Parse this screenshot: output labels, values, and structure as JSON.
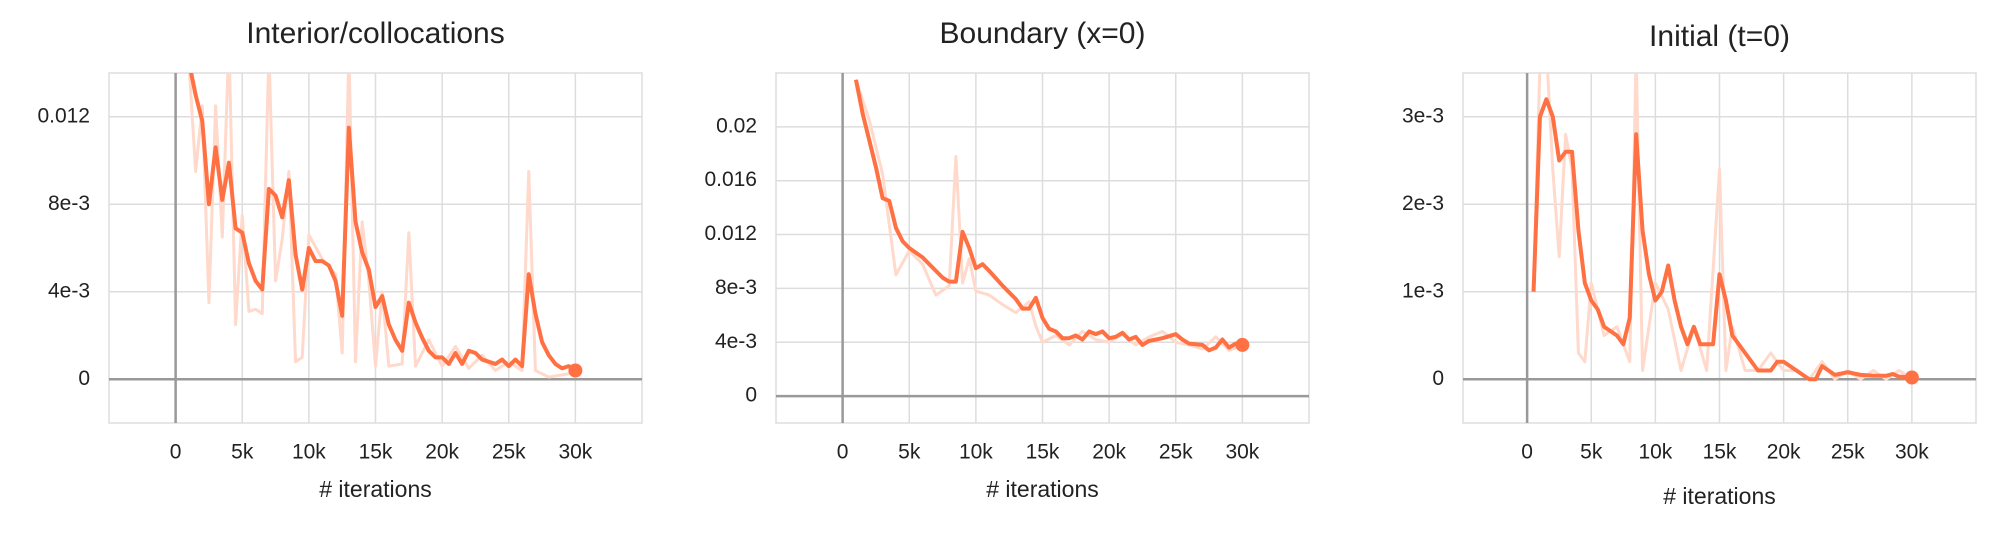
{
  "chart_data": [
    {
      "type": "line",
      "title": "Interior/collocations",
      "x_label": "# iterations",
      "x": [
        1000,
        1500,
        2000,
        2500,
        3000,
        3500,
        4000,
        4500,
        5000,
        5500,
        6000,
        6500,
        7000,
        7500,
        8000,
        8500,
        9000,
        9500,
        10000,
        10500,
        11000,
        11500,
        12000,
        12500,
        13000,
        13500,
        14000,
        14500,
        15000,
        15500,
        16000,
        16500,
        17000,
        17500,
        18000,
        18500,
        19000,
        19500,
        20000,
        20500,
        21000,
        21500,
        22000,
        22500,
        23000,
        24000,
        24500,
        25000,
        25500,
        26000,
        26500,
        27000,
        27500,
        28000,
        28500,
        29000,
        29500,
        30000
      ],
      "series": [
        {
          "color": "#ff7043",
          "values": [
            0.0145,
            0.013,
            0.0118,
            0.008,
            0.0106,
            0.0082,
            0.0099,
            0.0069,
            0.0067,
            0.0053,
            0.0045,
            0.0041,
            0.0087,
            0.0084,
            0.0074,
            0.0091,
            0.0057,
            0.0041,
            0.006,
            0.0054,
            0.0054,
            0.0052,
            0.0045,
            0.0029,
            0.0115,
            0.0072,
            0.0058,
            0.005,
            0.0033,
            0.0038,
            0.0025,
            0.0018,
            0.0013,
            0.0035,
            0.0026,
            0.0019,
            0.0013,
            0.001,
            0.001,
            0.0007,
            0.0012,
            0.0007,
            0.0013,
            0.0012,
            0.0009,
            0.0007,
            0.0009,
            0.0006,
            0.0009,
            0.0006,
            0.0048,
            0.003,
            0.0017,
            0.0011,
            0.0007,
            0.0005,
            0.0006,
            0.0004
          ]
        },
        {
          "color": "#ffd9cb",
          "x": [
            1000,
            1500,
            2000,
            2500,
            3000,
            3500,
            4000,
            4500,
            5000,
            5500,
            6000,
            6500,
            7000,
            7500,
            8000,
            8500,
            9000,
            9500,
            10000,
            11000,
            12000,
            12500,
            13000,
            13500,
            14000,
            14500,
            15000,
            15500,
            16000,
            17000,
            17500,
            18000,
            19000,
            20000,
            21000,
            22000,
            23000,
            24000,
            25000,
            26000,
            26500,
            27000,
            28000,
            29000,
            30000
          ],
          "values": [
            0.0145,
            0.0095,
            0.0125,
            0.0035,
            0.0125,
            0.0065,
            0.0155,
            0.0025,
            0.0075,
            0.0031,
            0.0032,
            0.003,
            0.015,
            0.0045,
            0.0064,
            0.0095,
            0.0008,
            0.001,
            0.0066,
            0.0055,
            0.0048,
            0.0012,
            0.015,
            0.0008,
            0.0072,
            0.0045,
            0.0006,
            0.004,
            0.0006,
            0.0007,
            0.0067,
            0.0006,
            0.0018,
            0.0006,
            0.0015,
            0.0005,
            0.0011,
            0.0004,
            0.0008,
            0.0004,
            0.0095,
            0.0004,
            0.0001,
            0.0002,
            0.0003
          ]
        }
      ],
      "xlim": [
        -5000,
        35000
      ],
      "xticks": [
        0,
        {
          "value": 5000,
          "label": "5k"
        },
        {
          "value": 10000,
          "label": "10k"
        },
        {
          "value": 15000,
          "label": "15k"
        },
        {
          "value": 20000,
          "label": "20k"
        },
        {
          "value": 25000,
          "label": "25k"
        },
        {
          "value": 30000,
          "label": "30k"
        }
      ],
      "ylim": [
        -0.002,
        0.014
      ],
      "yticks": [
        0,
        {
          "value": 0.004,
          "label": "4e-3"
        },
        {
          "value": 0.008,
          "label": "8e-3"
        },
        0.012
      ],
      "grid": true
    },
    {
      "type": "line",
      "title": "Boundary (x=0)",
      "x_label": "# iterations",
      "x": [
        1000,
        1500,
        2000,
        2500,
        3000,
        3500,
        4000,
        4500,
        5000,
        6000,
        7000,
        7500,
        8000,
        8500,
        9000,
        9500,
        10000,
        10500,
        11000,
        12000,
        13000,
        13500,
        14000,
        14500,
        15000,
        15500,
        16000,
        16500,
        17000,
        17500,
        18000,
        18500,
        19000,
        19500,
        20000,
        20500,
        21000,
        21500,
        22000,
        22500,
        23000,
        24000,
        25000,
        25500,
        26000,
        27000,
        27500,
        28000,
        28500,
        29000,
        29500,
        30000
      ],
      "series": [
        {
          "color": "#ff7043",
          "values": [
            0.0235,
            0.021,
            0.019,
            0.017,
            0.0147,
            0.0145,
            0.0125,
            0.0115,
            0.011,
            0.0103,
            0.0093,
            0.0088,
            0.0085,
            0.0085,
            0.0122,
            0.011,
            0.0095,
            0.0098,
            0.0093,
            0.0082,
            0.0072,
            0.0065,
            0.0065,
            0.0073,
            0.0058,
            0.005,
            0.0048,
            0.0043,
            0.0043,
            0.0045,
            0.0042,
            0.0048,
            0.0046,
            0.0048,
            0.0043,
            0.0044,
            0.0047,
            0.0042,
            0.0044,
            0.0038,
            0.0041,
            0.0043,
            0.0046,
            0.0042,
            0.0039,
            0.0038,
            0.0034,
            0.0036,
            0.0042,
            0.0036,
            0.0039,
            0.0038
          ]
        },
        {
          "color": "#ffd9cb",
          "x": [
            1000,
            2000,
            3000,
            4000,
            5000,
            6000,
            7000,
            8000,
            8500,
            9000,
            9500,
            10000,
            11000,
            12000,
            13000,
            14000,
            14500,
            15000,
            16000,
            17000,
            18000,
            19000,
            20000,
            21000,
            22000,
            23000,
            24000,
            25000,
            26000,
            27000,
            28000,
            29000,
            30000
          ],
          "values": [
            0.0235,
            0.0205,
            0.0165,
            0.009,
            0.0108,
            0.0098,
            0.0075,
            0.0082,
            0.0178,
            0.0084,
            0.0102,
            0.0078,
            0.0075,
            0.0068,
            0.0062,
            0.007,
            0.0052,
            0.004,
            0.0045,
            0.0038,
            0.0048,
            0.0042,
            0.004,
            0.0046,
            0.0038,
            0.0044,
            0.0048,
            0.004,
            0.0038,
            0.0035,
            0.0044,
            0.0034,
            0.0038
          ]
        }
      ],
      "xlim": [
        -5000,
        35000
      ],
      "xticks": [
        0,
        {
          "value": 5000,
          "label": "5k"
        },
        {
          "value": 10000,
          "label": "10k"
        },
        {
          "value": 15000,
          "label": "15k"
        },
        {
          "value": 20000,
          "label": "20k"
        },
        {
          "value": 25000,
          "label": "25k"
        },
        {
          "value": 30000,
          "label": "30k"
        }
      ],
      "ylim": [
        -0.002,
        0.024
      ],
      "yticks": [
        0,
        {
          "value": 0.004,
          "label": "4e-3"
        },
        {
          "value": 0.008,
          "label": "8e-3"
        },
        0.012,
        0.016,
        0.02
      ],
      "grid": true
    },
    {
      "type": "line",
      "title": "Initial (t=0)",
      "x_label": "# iterations",
      "x": [
        500,
        1000,
        1500,
        2000,
        2500,
        3000,
        3500,
        4000,
        4500,
        5000,
        5500,
        6000,
        7000,
        7500,
        8000,
        8500,
        9000,
        9500,
        10000,
        10500,
        11000,
        11500,
        12000,
        12500,
        13000,
        13500,
        14000,
        14500,
        15000,
        15500,
        16000,
        16500,
        17000,
        17500,
        18000,
        19000,
        19500,
        20000,
        21000,
        22000,
        22500,
        23000,
        24000,
        25000,
        26000,
        27000,
        28000,
        28500,
        29000,
        30000
      ],
      "series": [
        {
          "color": "#ff7043",
          "values": [
            0.001,
            0.003,
            0.0032,
            0.003,
            0.0025,
            0.0026,
            0.0026,
            0.0017,
            0.0011,
            0.0009,
            0.0008,
            0.0006,
            0.0005,
            0.0004,
            0.0007,
            0.0028,
            0.0017,
            0.0012,
            0.0009,
            0.001,
            0.0013,
            0.0009,
            0.0006,
            0.0004,
            0.0006,
            0.0004,
            0.0004,
            0.0004,
            0.0012,
            0.0009,
            0.0005,
            0.0004,
            0.0003,
            0.0002,
            0.0001,
            0.0001,
            0.0002,
            0.0002,
            0.0001,
            0,
            0,
            0.00015,
            5e-05,
            8e-05,
            5e-05,
            4e-05,
            4e-05,
            6e-05,
            3e-05,
            2e-05
          ]
        },
        {
          "color": "#ffd9cb",
          "x": [
            500,
            1000,
            1500,
            2000,
            2500,
            3000,
            3500,
            4000,
            4500,
            5000,
            6000,
            7000,
            8000,
            8500,
            9000,
            9500,
            10000,
            11000,
            12000,
            13000,
            14000,
            15000,
            15500,
            16000,
            17000,
            18000,
            19000,
            20000,
            21000,
            22000,
            23000,
            24000,
            25000,
            26000,
            27000,
            28000,
            29000,
            30000
          ],
          "values": [
            0.001,
            0.0036,
            0.0038,
            0.0024,
            0.0014,
            0.0028,
            0.0024,
            0.0003,
            0.0002,
            0.0011,
            0.0005,
            0.0006,
            0.0002,
            0.0037,
            0.0001,
            0.0006,
            0.0011,
            0.0008,
            0.0001,
            0.0006,
            0.0001,
            0.0024,
            0.0001,
            0.0006,
            0.0001,
            0.0001,
            0.0003,
            0.0001,
            0.0001,
            0,
            0.0002,
            0,
            0.0001,
            0,
            0.0001,
            0,
            0.0001,
            0
          ]
        }
      ],
      "xlim": [
        -5000,
        35000
      ],
      "xticks": [
        0,
        {
          "value": 5000,
          "label": "5k"
        },
        {
          "value": 10000,
          "label": "10k"
        },
        {
          "value": 15000,
          "label": "15k"
        },
        {
          "value": 20000,
          "label": "20k"
        },
        {
          "value": 25000,
          "label": "25k"
        },
        {
          "value": 30000,
          "label": "30k"
        }
      ],
      "ylim": [
        -0.0005,
        0.0035
      ],
      "yticks": [
        0,
        {
          "value": 0.001,
          "label": "1e-3"
        },
        {
          "value": 0.002,
          "label": "2e-3"
        },
        {
          "value": 0.003,
          "label": "3e-3"
        }
      ],
      "grid": true
    }
  ]
}
